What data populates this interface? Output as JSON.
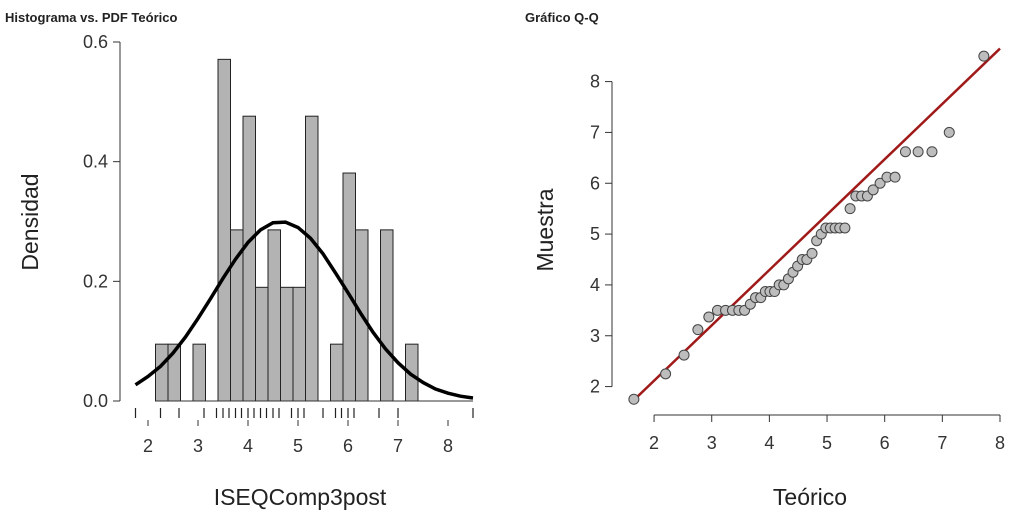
{
  "chart_data": [
    {
      "type": "histogram",
      "title": "Histograma vs. PDF Teórico",
      "x_label": "ISEQComp3post",
      "y_label": "Densidad",
      "bins": [
        2.15,
        2.4,
        2.65,
        2.9,
        3.15,
        3.4,
        3.65,
        3.9,
        4.15,
        4.4,
        4.65,
        4.9,
        5.15,
        5.4,
        5.65,
        5.9,
        6.15,
        6.4,
        6.65,
        6.9,
        7.15,
        7.4
      ],
      "values": [
        0.095,
        0.095,
        0,
        0.095,
        0,
        0.571,
        0.286,
        0.476,
        0.19,
        0.286,
        0.19,
        0.19,
        0.476,
        0,
        0.095,
        0.381,
        0.286,
        0,
        0.286,
        0,
        0.095
      ],
      "color": "#b3b3b3",
      "curve": {
        "color": "#000000",
        "x": [
          1.75,
          2.0,
          2.25,
          2.5,
          2.75,
          3.0,
          3.25,
          3.5,
          3.75,
          4.0,
          4.25,
          4.5,
          4.75,
          5.0,
          5.25,
          5.5,
          5.75,
          6.0,
          6.25,
          6.5,
          6.75,
          7.0,
          7.25,
          7.5,
          7.75,
          8.0,
          8.25,
          8.5
        ],
        "y": [
          0.027,
          0.041,
          0.058,
          0.08,
          0.107,
          0.138,
          0.171,
          0.205,
          0.237,
          0.265,
          0.286,
          0.298,
          0.299,
          0.29,
          0.272,
          0.246,
          0.214,
          0.181,
          0.147,
          0.115,
          0.087,
          0.064,
          0.045,
          0.031,
          0.02,
          0.013,
          0.008,
          0.005
        ]
      },
      "rug": [
        1.75,
        2.25,
        2.62,
        3.12,
        3.37,
        3.5,
        3.62,
        3.75,
        3.87,
        4.0,
        4.12,
        4.25,
        4.37,
        4.5,
        4.62,
        4.87,
        5.0,
        5.12,
        5.5,
        5.75,
        5.87,
        6.0,
        6.12,
        6.62,
        7.0,
        8.5
      ],
      "xlim": [
        1.7,
        8.5
      ],
      "xticks": [
        2,
        3,
        4,
        5,
        6,
        7,
        8
      ],
      "ylim": [
        0,
        0.6
      ],
      "yticks": [
        {
          "value": 0,
          "label": "0.0"
        },
        0.2,
        0.4,
        0.6
      ]
    },
    {
      "type": "scatter",
      "title": "Gráfico Q-Q",
      "x_label": "Teórico",
      "y_label": "Muestra",
      "color": "#bdbdbd",
      "x": [
        1.65,
        2.2,
        2.52,
        2.76,
        2.95,
        3.1,
        3.24,
        3.36,
        3.47,
        3.57,
        3.67,
        3.76,
        3.85,
        3.93,
        4.01,
        4.09,
        4.17,
        4.25,
        4.33,
        4.41,
        4.49,
        4.57,
        4.65,
        4.74,
        4.82,
        4.9,
        4.98,
        5.06,
        5.14,
        5.22,
        5.31,
        5.4,
        5.5,
        5.6,
        5.7,
        5.8,
        5.92,
        6.04,
        6.18,
        6.36,
        6.58,
        6.82,
        7.12,
        7.72
      ],
      "values": [
        1.75,
        2.25,
        2.62,
        3.12,
        3.37,
        3.5,
        3.5,
        3.5,
        3.5,
        3.5,
        3.62,
        3.75,
        3.75,
        3.87,
        3.87,
        3.87,
        4.0,
        4.0,
        4.12,
        4.25,
        4.37,
        4.5,
        4.5,
        4.62,
        4.87,
        5.0,
        5.12,
        5.12,
        5.12,
        5.12,
        5.12,
        5.5,
        5.75,
        5.75,
        5.75,
        5.87,
        6.0,
        6.12,
        6.12,
        6.62,
        6.62,
        6.62,
        7.0,
        8.5
      ],
      "reference_line": {
        "color": "#a01a1a",
        "x": [
          1.6,
          8.0
        ],
        "y": [
          1.68,
          8.65
        ]
      },
      "xlim": [
        1.6,
        8.0
      ],
      "xticks": [
        2,
        3,
        4,
        5,
        6,
        7,
        8
      ],
      "ylim": [
        1.5,
        8.7
      ],
      "yticks": [
        2,
        3,
        4,
        5,
        6,
        7,
        8
      ]
    }
  ]
}
